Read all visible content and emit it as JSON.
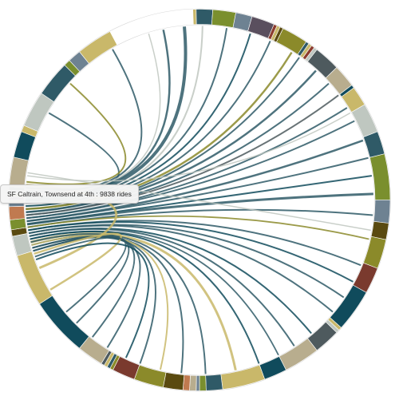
{
  "tooltip": {
    "station": "SF Caltrain, Townsend at 4th",
    "separator": " : ",
    "rides": "9838",
    "unit": "rides"
  },
  "palette": [
    "#c9b86a",
    "#2f5a67",
    "#bfc7c0",
    "#7a8f2e",
    "#b8ad8e",
    "#6e8292",
    "#104b5c",
    "#8c3c2e",
    "#5a4a10",
    "#8b8a2a",
    "#5a4f5e",
    "#4e5a5e"
  ],
  "segments": [
    {
      "deg": 1,
      "color": "#c9b86a"
    },
    {
      "deg": 5,
      "color": "#2f5a67"
    },
    {
      "deg": 7,
      "color": "#7a8f2e"
    },
    {
      "deg": 5,
      "color": "#6e8292"
    },
    {
      "deg": 7,
      "color": "#5a4f5e"
    },
    {
      "deg": 1,
      "color": "#8c3c2e"
    },
    {
      "deg": 1,
      "color": "#c9b86a"
    },
    {
      "deg": 1,
      "color": "#5a4a10"
    },
    {
      "deg": 8,
      "color": "#8b8a2a"
    },
    {
      "deg": 1,
      "color": "#2f5a67"
    },
    {
      "deg": 1,
      "color": "#c9b86a"
    },
    {
      "deg": 1,
      "color": "#8c3c2e"
    },
    {
      "deg": 1,
      "color": "#bfc7c0"
    },
    {
      "deg": 8,
      "color": "#4e5a5e"
    },
    {
      "deg": 7,
      "color": "#b8ad8e"
    },
    {
      "deg": 1,
      "color": "#104b5c"
    },
    {
      "deg": 6,
      "color": "#c9b86a"
    },
    {
      "deg": 9,
      "color": "#bfc7c0"
    },
    {
      "deg": 7,
      "color": "#2f5a67"
    },
    {
      "deg": 14,
      "color": "#7a8f2e"
    },
    {
      "deg": 7,
      "color": "#6e8292"
    },
    {
      "deg": 5,
      "color": "#5a4a10"
    },
    {
      "deg": 9,
      "color": "#8b8a2a"
    },
    {
      "deg": 8,
      "color": "#7a3a2e"
    },
    {
      "deg": 13,
      "color": "#104b5c"
    },
    {
      "deg": 1,
      "color": "#c9b86a"
    },
    {
      "deg": 1,
      "color": "#bfc7c0"
    },
    {
      "deg": 8,
      "color": "#4e5a5e"
    },
    {
      "deg": 11,
      "color": "#b8ad8e"
    },
    {
      "deg": 7,
      "color": "#104b5c"
    },
    {
      "deg": 13,
      "color": "#c9b86a"
    },
    {
      "deg": 5,
      "color": "#2f5a67"
    },
    {
      "deg": 2,
      "color": "#7a8f2e"
    },
    {
      "deg": 1,
      "color": "#6e8292"
    },
    {
      "deg": 2,
      "color": "#b8ad8e"
    },
    {
      "deg": 2,
      "color": "#c07a50"
    },
    {
      "deg": 6,
      "color": "#5a4a10"
    },
    {
      "deg": 9,
      "color": "#8b8a2a"
    },
    {
      "deg": 7,
      "color": "#7a3a2e"
    },
    {
      "deg": 1,
      "color": "#8b8a2a"
    },
    {
      "deg": 1,
      "color": "#2f5a67"
    },
    {
      "deg": 1,
      "color": "#c9b86a"
    },
    {
      "deg": 1,
      "color": "#4e5a5e"
    },
    {
      "deg": 8,
      "color": "#b8ad8e"
    },
    {
      "deg": 18,
      "color": "#104b5c"
    },
    {
      "deg": 16,
      "color": "#c9b86a"
    },
    {
      "deg": 6,
      "color": "#bfc7c0"
    },
    {
      "deg": 2,
      "color": "#5a4a10"
    },
    {
      "deg": 3,
      "color": "#7a8f2e"
    },
    {
      "deg": 4,
      "color": "#c07a50"
    },
    {
      "deg": 1,
      "color": "#6e8292"
    },
    {
      "deg": 1,
      "color": "#c9b86a"
    },
    {
      "deg": 1,
      "color": "#5a4f5e"
    },
    {
      "deg": 1,
      "color": "#8b8a2a"
    },
    {
      "deg": 1,
      "color": "#bfc7c0"
    },
    {
      "deg": 1,
      "color": "#2f5a67"
    },
    {
      "deg": 9,
      "color": "#b8ad8e"
    },
    {
      "deg": 8,
      "color": "#104b5c"
    },
    {
      "deg": 2,
      "color": "#c9b86a"
    },
    {
      "deg": 11,
      "color": "#bfc7c0"
    },
    {
      "deg": 11,
      "color": "#2f5a67"
    },
    {
      "deg": 2,
      "color": "#7a8f2e"
    },
    {
      "deg": 4,
      "color": "#6e8292"
    },
    {
      "deg": 11,
      "color": "#c9b86a"
    }
  ],
  "chords": [
    {
      "s": 271,
      "t": 348,
      "w": 2.5,
      "c": "#2f5a67"
    },
    {
      "s": 270,
      "t": 355,
      "w": 4,
      "c": "#2f5a67"
    },
    {
      "s": 268,
      "t": 1,
      "w": 2,
      "c": "#bfc7c0"
    },
    {
      "s": 269,
      "t": 9,
      "w": 2,
      "c": "#2f5a67"
    },
    {
      "s": 268,
      "t": 17,
      "w": 2,
      "c": "#104b5c"
    },
    {
      "s": 267,
      "t": 24,
      "w": 2,
      "c": "#2f5a67"
    },
    {
      "s": 267,
      "t": 32,
      "w": 2.5,
      "c": "#8b8a2a"
    },
    {
      "s": 266,
      "t": 35,
      "w": 2,
      "c": "#2f5a67"
    },
    {
      "s": 266,
      "t": 42,
      "w": 2.5,
      "c": "#2f5a67"
    },
    {
      "s": 265,
      "t": 48,
      "w": 2,
      "c": "#2f5a67"
    },
    {
      "s": 265,
      "t": 53,
      "w": 2,
      "c": "#4e5a5e"
    },
    {
      "s": 264,
      "t": 58,
      "w": 2,
      "c": "#2f5a67"
    },
    {
      "s": 264,
      "t": 63,
      "w": 2,
      "c": "#2f5a67"
    },
    {
      "s": 263,
      "t": 70,
      "w": 2.5,
      "c": "#2f5a67"
    },
    {
      "s": 263,
      "t": 76,
      "w": 2,
      "c": "#2f5a67"
    },
    {
      "s": 262,
      "t": 82,
      "w": 2,
      "c": "#104b5c"
    },
    {
      "s": 262,
      "t": 88,
      "w": 3,
      "c": "#2f5a67"
    },
    {
      "s": 261,
      "t": 95,
      "w": 2,
      "c": "#2f5a67"
    },
    {
      "s": 261,
      "t": 103,
      "w": 1.8,
      "c": "#8b8a2a"
    },
    {
      "s": 260,
      "t": 112,
      "w": 2,
      "c": "#2f5a67"
    },
    {
      "s": 260,
      "t": 118,
      "w": 2,
      "c": "#104b5c"
    },
    {
      "s": 259,
      "t": 124,
      "w": 2,
      "c": "#2f5a67"
    },
    {
      "s": 259,
      "t": 130,
      "w": 2,
      "c": "#2f5a67"
    },
    {
      "s": 258,
      "t": 140,
      "w": 2,
      "c": "#104b5c"
    },
    {
      "s": 258,
      "t": 147,
      "w": 2,
      "c": "#2f5a67"
    },
    {
      "s": 257,
      "t": 153,
      "w": 1.8,
      "c": "#2f5a67"
    },
    {
      "s": 257,
      "t": 160,
      "w": 2,
      "c": "#104b5c"
    },
    {
      "s": 256,
      "t": 168,
      "w": 3,
      "c": "#c9b86a"
    },
    {
      "s": 256,
      "t": 178,
      "w": 2,
      "c": "#2f5a67"
    },
    {
      "s": 255,
      "t": 186,
      "w": 2,
      "c": "#2f5a67"
    },
    {
      "s": 255,
      "t": 193,
      "w": 2,
      "c": "#c9b86a"
    },
    {
      "s": 254,
      "t": 200,
      "w": 2,
      "c": "#2f5a67"
    },
    {
      "s": 254,
      "t": 212,
      "w": 2,
      "c": "#2f5a67"
    },
    {
      "s": 253,
      "t": 218,
      "w": 2,
      "c": "#2f5a67"
    },
    {
      "s": 253,
      "t": 225,
      "w": 2,
      "c": "#2f5a67"
    },
    {
      "s": 252,
      "t": 239,
      "w": 2.5,
      "c": "#c9b86a"
    },
    {
      "s": 275,
      "t": 247,
      "w": 3,
      "c": "#c9b86a"
    },
    {
      "s": 274,
      "t": 300,
      "w": 2,
      "c": "#2f5a67"
    },
    {
      "s": 273,
      "t": 330,
      "w": 2,
      "c": "#2f5a67"
    },
    {
      "s": 276,
      "t": 312,
      "w": 2,
      "c": "#8b8a2a"
    },
    {
      "s": 272,
      "t": 343,
      "w": 1.5,
      "c": "#bfc7c0"
    },
    {
      "s": 251,
      "t": 230,
      "w": 2,
      "c": "#2f5a67"
    },
    {
      "s": 250,
      "t": 205,
      "w": 2,
      "c": "#104b5c"
    },
    {
      "s": 278,
      "t": 60,
      "w": 1.5,
      "c": "#bfc7c0"
    },
    {
      "s": 279,
      "t": 100,
      "w": 1.5,
      "c": "#bfc7c0"
    }
  ]
}
